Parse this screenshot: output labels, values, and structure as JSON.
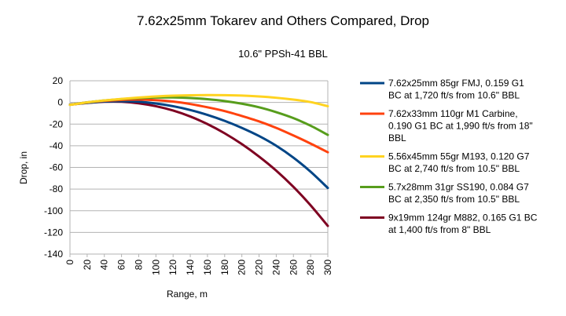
{
  "chart_data": {
    "type": "line",
    "title": "7.62x25mm Tokarev and Others Compared, Drop",
    "subtitle": "10.6\" PPSh-41 BBL",
    "xlabel": "Range, m",
    "ylabel": "Drop, in",
    "xlim": [
      0,
      300
    ],
    "ylim": [
      -140,
      20
    ],
    "x_ticks": [
      0,
      20,
      40,
      60,
      80,
      100,
      120,
      140,
      160,
      180,
      200,
      220,
      240,
      260,
      280,
      300
    ],
    "y_ticks": [
      20,
      0,
      -20,
      -40,
      -60,
      -80,
      -100,
      -120,
      -140
    ],
    "grid": "horizontal",
    "legend_position": "right",
    "x": [
      0,
      20,
      40,
      60,
      80,
      100,
      120,
      140,
      160,
      180,
      200,
      220,
      240,
      260,
      280,
      300
    ],
    "series": [
      {
        "name": "7.62x25mm 85gr FMJ, 0.159 G1 BC at 1,720 ft/s from 10.6\" BBL",
        "legend_lines": [
          "7.62x25mm 85gr FMJ, 0.159 G1",
          "BC at 1,720 ft/s from 10.6\" BBL"
        ],
        "color": "#004586",
        "values": [
          -2.1,
          -0.4,
          0.8,
          1.1,
          0.6,
          -1.0,
          -3.5,
          -7.0,
          -11.5,
          -17.0,
          -23.5,
          -31.0,
          -40.0,
          -51.0,
          -64.0,
          -79.0
        ]
      },
      {
        "name": "7.62x33mm 110gr M1 Carbine, 0.190 G1 BC at 1,990 ft/s from 18\" BBL",
        "legend_lines": [
          "7.62x33mm 110gr M1 Carbine,",
          "0.190 G1 BC at 1,990 ft/s from 18\"",
          "BBL"
        ],
        "color": "#ff420e",
        "values": [
          -2.2,
          0.0,
          1.4,
          2.3,
          2.6,
          2.1,
          0.8,
          -1.5,
          -4.5,
          -8.0,
          -12.5,
          -17.5,
          -23.5,
          -30.5,
          -38.0,
          -46.0
        ]
      },
      {
        "name": "5.56x45mm 55gr M193, 0.120 G7 BC at 2,740 ft/s from 10.5\" BBL",
        "legend_lines": [
          "5.56x45mm 55gr M193, 0.120 G7",
          "BC at 2,740 ft/s from 10.5\" BBL"
        ],
        "color": "#ffd320",
        "values": [
          -2.3,
          0.0,
          1.8,
          3.3,
          4.5,
          5.5,
          6.2,
          6.6,
          6.8,
          6.7,
          6.3,
          5.5,
          4.3,
          2.6,
          0.3,
          -3.5
        ]
      },
      {
        "name": "5.7x28mm 31gr SS190, 0.084 G7 BC at 2,350 ft/s from 10.5\" BBL",
        "legend_lines": [
          "5.7x28mm 31gr SS190, 0.084 G7",
          "BC at 2,350 ft/s from 10.5\" BBL"
        ],
        "color": "#579d1c",
        "values": [
          -2.2,
          0.1,
          1.8,
          3.1,
          4.0,
          4.5,
          4.6,
          4.1,
          3.0,
          1.3,
          -1.2,
          -4.5,
          -9.0,
          -14.5,
          -21.5,
          -30.0
        ]
      },
      {
        "name": "9x19mm 124gr M882, 0.165 G1 BC at 1,400 ft/s from 8\" BBL",
        "legend_lines": [
          "9x19mm 124gr M882, 0.165 G1 BC",
          "at 1,400 ft/s from 8\" BBL"
        ],
        "color": "#7e0021",
        "values": [
          -2.1,
          -0.5,
          0.6,
          0.6,
          -0.8,
          -3.5,
          -7.5,
          -13.0,
          -20.0,
          -28.5,
          -38.5,
          -50.0,
          -63.0,
          -78.0,
          -95.0,
          -114.0
        ]
      }
    ]
  }
}
